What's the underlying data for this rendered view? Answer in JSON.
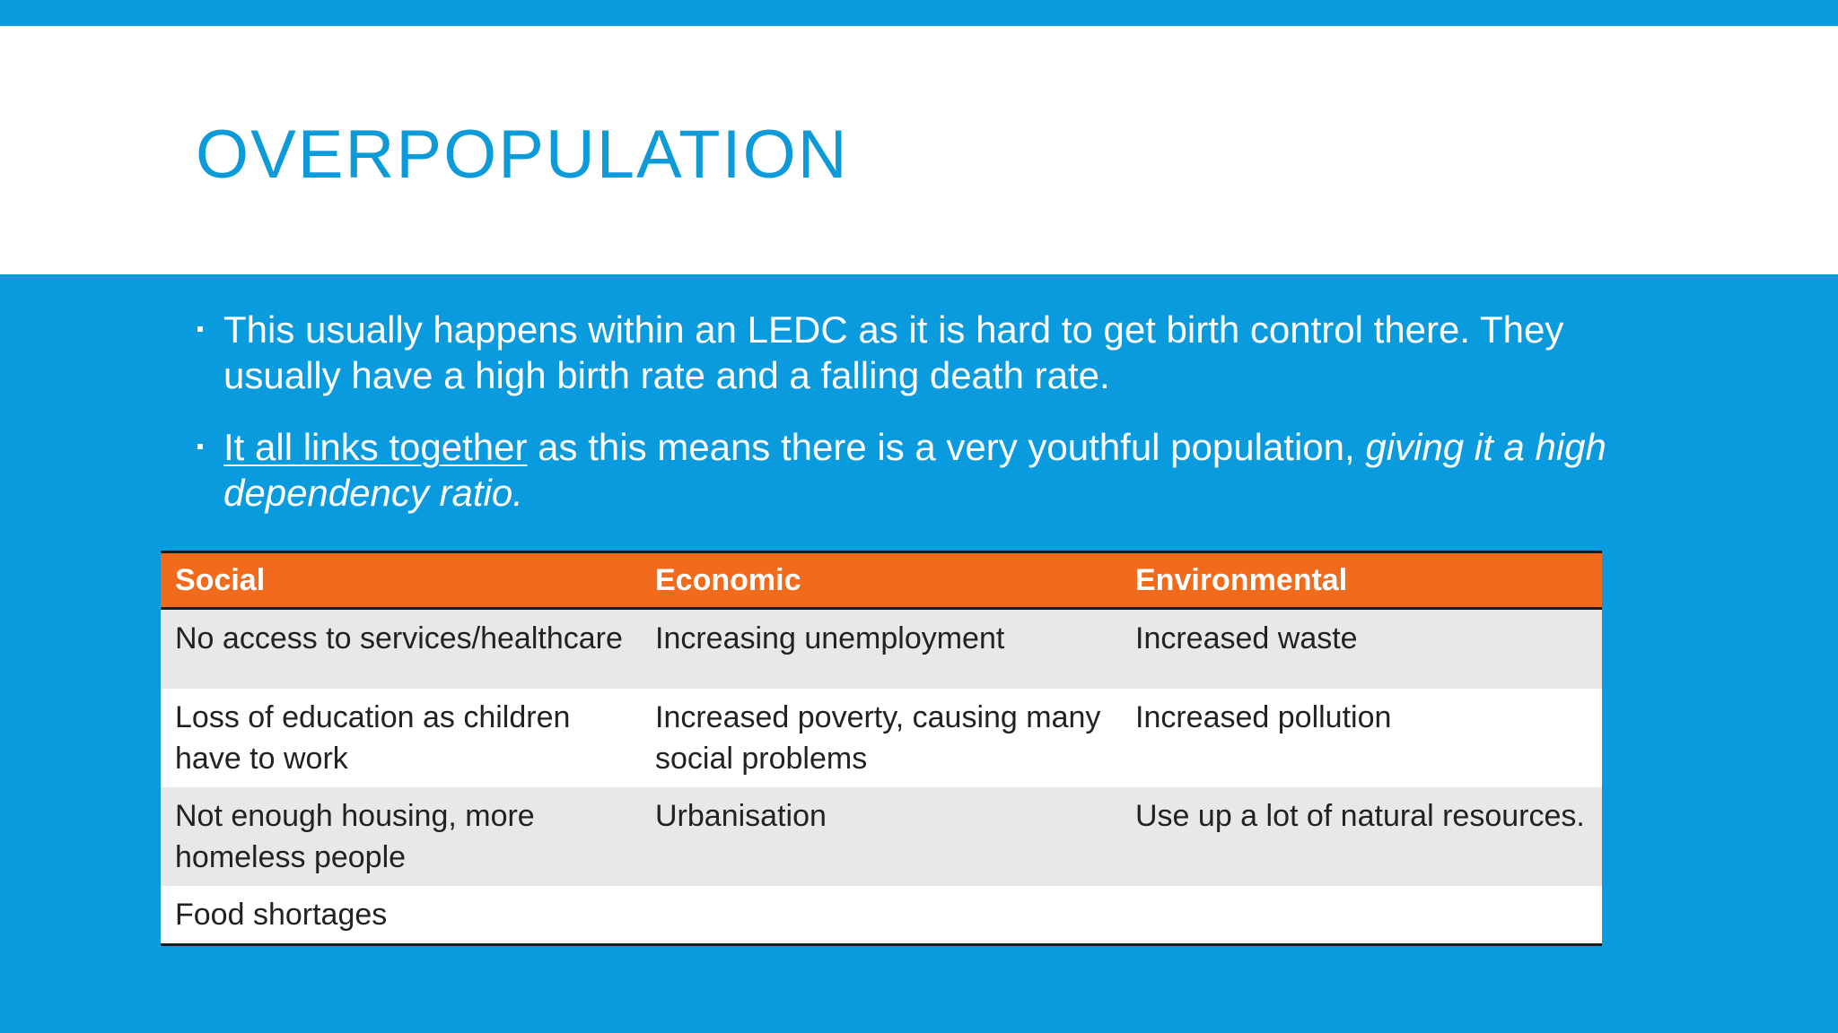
{
  "slide": {
    "title": "OVERPOPULATION",
    "bullets": [
      {
        "text": "This usually happens within an LEDC as it is hard to get birth control there. They usually have a high birth rate and a falling death rate."
      },
      {
        "underlined": "It all links together",
        "middle": " as this means there is a very youthful population, ",
        "italic": "giving it a high dependency ratio."
      }
    ],
    "table": {
      "headers": [
        "Social",
        "Economic",
        "Environmental"
      ],
      "rows": [
        [
          "No access to services/healthcare",
          "Increasing unemployment",
          "Increased waste"
        ],
        [
          "Loss of education as children have to work",
          "Increased poverty, causing many social problems",
          "Increased pollution"
        ],
        [
          "Not enough housing, more homeless people",
          "Urbanisation",
          "Use up a lot of natural resources."
        ],
        [
          "Food shortages",
          "",
          ""
        ]
      ]
    },
    "colors": {
      "background": "#0a9bdf",
      "title_band": "#ffffff",
      "title_text": "#0d9ad8",
      "table_header": "#f26a1b",
      "table_row_alt": "#e8e8e8"
    }
  }
}
